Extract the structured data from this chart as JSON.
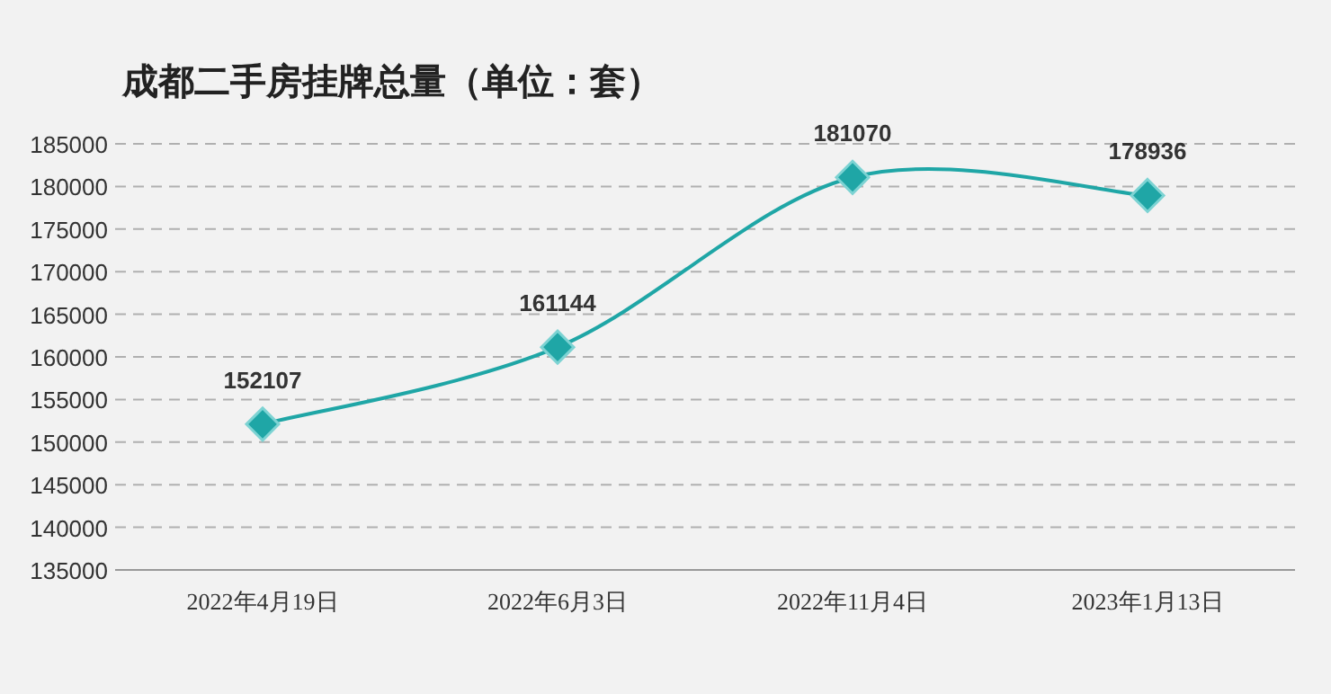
{
  "chart_data": {
    "type": "line",
    "title": "成都二手房挂牌总量（单位：套）",
    "categories": [
      "2022年4月19日",
      "2022年6月3日",
      "2022年11月4日",
      "2023年1月13日"
    ],
    "values": [
      152107,
      161144,
      181070,
      178936
    ],
    "color": "#1fa6a6",
    "ylim": [
      135000,
      185000
    ],
    "yticks": [
      135000,
      140000,
      145000,
      150000,
      155000,
      160000,
      165000,
      170000,
      175000,
      180000,
      185000
    ],
    "grid": "y",
    "data_labels": true,
    "marker": "diamond",
    "line_style": "solid"
  }
}
